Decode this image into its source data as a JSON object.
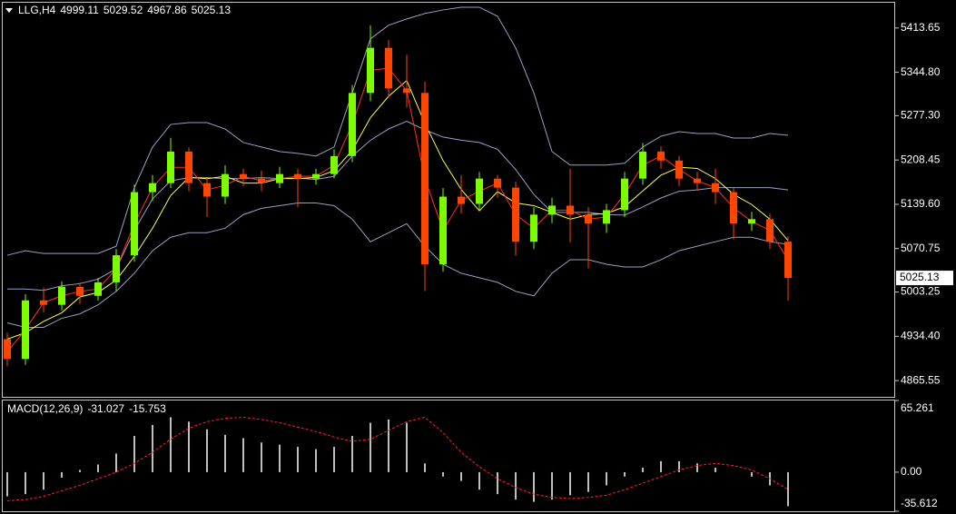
{
  "chart_data": [
    {
      "type": "candlestick",
      "title": "LLG,H4",
      "readout": [
        4999.11,
        5029.52,
        4967.86,
        5025.13
      ],
      "open": [
        4930,
        4899.2,
        4990.3,
        4983.3,
        5011.3,
        4997.3,
        5018.3,
        5060.4,
        5158.5,
        5172.5,
        5221.6,
        5172.5,
        5151.5,
        5186.6,
        5179.5,
        5172.5,
        5186.6,
        5179.5,
        5186.6,
        5214.6,
        5312.7,
        5382.8,
        5319.7,
        5312.7,
        5046.4,
        5151.5,
        5140.2,
        5179.5,
        5165.5,
        5081.4,
        5123.5,
        5137.5,
        5123.5,
        5109.5,
        5130.5,
        5179.5,
        5221.6,
        5207.6,
        5179.5,
        5172.5,
        5158.5,
        5109.5,
        5116.5,
        5081.4
      ],
      "high": [
        4940,
        5000,
        5010,
        5020,
        5018,
        5025,
        5070,
        5170,
        5185,
        5243,
        5228,
        5180,
        5200,
        5195,
        5192,
        5198,
        5195,
        5195,
        5225,
        5325,
        5418,
        5395,
        5372,
        5330,
        5165,
        5185,
        5190,
        5185,
        5175,
        5135,
        5150,
        5195,
        5135,
        5140,
        5190,
        5235,
        5230,
        5215,
        5190,
        5195,
        5165,
        5128,
        5125,
        5090
      ],
      "low": [
        4888,
        4890,
        4972,
        4975,
        4985,
        4990,
        5005,
        5050,
        5145,
        5165,
        5160,
        5120,
        5140,
        5168,
        5160,
        5165,
        5135,
        5170,
        5180,
        5205,
        5300,
        5305,
        5290,
        5005,
        5035,
        5125,
        5130,
        5150,
        5060,
        5070,
        5110,
        5080,
        5040,
        5095,
        5120,
        5170,
        5195,
        5168,
        5162,
        5140,
        5085,
        5098,
        5070,
        4990
      ],
      "close": [
        4899.2,
        4990.3,
        4983.3,
        5011.3,
        4997.3,
        5018.3,
        5060.4,
        5158.5,
        5172.5,
        5221.6,
        5172.5,
        5151.5,
        5186.6,
        5179.5,
        5172.5,
        5186.6,
        5179.5,
        5186.6,
        5214.6,
        5312.7,
        5382.8,
        5319.7,
        5312.7,
        5046.4,
        5151.5,
        5140.2,
        5179.5,
        5165.5,
        5081.4,
        5123.5,
        5137.5,
        5123.5,
        5109.5,
        5130.5,
        5179.5,
        5221.6,
        5207.6,
        5179.5,
        5172.5,
        5158.5,
        5109.5,
        5116.5,
        5081.4,
        5025.13
      ],
      "up_color": "#7cfc00",
      "down_color": "#ff4500",
      "overlays": [
        {
          "color": "#9aa0c0",
          "values": [
            5060.4,
            5067.4,
            5063.2,
            5063.2,
            5063.2,
            5063.2,
            5074.4,
            5165.5,
            5228.6,
            5263.7,
            5266.5,
            5266.5,
            5256.6,
            5235.6,
            5228.6,
            5221.6,
            5218.8,
            5214.6,
            5228.6,
            5312.7,
            5396.8,
            5417.9,
            5427.7,
            5436.1,
            5441.7,
            5445.9,
            5445.9,
            5431.9,
            5382.8,
            5312.7,
            5221.6,
            5200.6,
            5200.6,
            5200.6,
            5203.4,
            5228.6,
            5245.4,
            5252.4,
            5249.6,
            5249.6,
            5242.6,
            5242.6,
            5249.6,
            5246.8
          ]
        },
        {
          "color": "#9aa0c0",
          "values": [
            5007.9,
            5007.9,
            5005.8,
            5012.8,
            5016.3,
            5023.3,
            5039.4,
            5099.0,
            5148.0,
            5176.1,
            5181.0,
            5181.0,
            5179.5,
            5179.6,
            5181.0,
            5179.6,
            5180.3,
            5178.2,
            5183.1,
            5214.6,
            5239.1,
            5256.7,
            5268.6,
            5255.3,
            5244.1,
            5239.2,
            5235.7,
            5225.1,
            5193.6,
            5155.0,
            5127.0,
            5127.0,
            5127.0,
            5123.5,
            5122.8,
            5135.4,
            5149.4,
            5159.9,
            5162.0,
            5165.5,
            5165.5,
            5165.5,
            5165.5,
            5162.0
          ]
        },
        {
          "color": "#9aa0c0",
          "values": [
            4955.3,
            4948.3,
            4948.3,
            4962.3,
            4969.3,
            4983.3,
            5004.3,
            5032.4,
            5067.4,
            5088.4,
            5095.4,
            5095.4,
            5102.4,
            5123.5,
            5133.3,
            5137.5,
            5141.7,
            5141.7,
            5137.5,
            5116.5,
            5081.4,
            5095.4,
            5109.5,
            5074.4,
            5046.4,
            5032.4,
            5025.4,
            5018.3,
            5004.3,
            4997.3,
            5032.4,
            5053.4,
            5053.4,
            5046.4,
            5042.2,
            5042.2,
            5053.4,
            5067.4,
            5074.4,
            5081.4,
            5088.4,
            5088.4,
            5081.4,
            5077.2
          ]
        },
        {
          "color": "#ffff50",
          "values": [
            4930,
            4940,
            4957.6,
            4971.0,
            4995.6,
            5002.6,
            5021.8,
            5058.6,
            5102.4,
            5153.3,
            5181.3,
            5179.5,
            5183.1,
            5172.5,
            5172.5,
            5179.6,
            5179.6,
            5181.3,
            5191.8,
            5223.4,
            5274.2,
            5307.5,
            5332.0,
            5265.4,
            5207.6,
            5162.7,
            5129.4,
            5159.2,
            5141.7,
            5137.5,
            5127.0,
            5116.5,
            5123.5,
            5125.3,
            5135.8,
            5160.3,
            5184.8,
            5197.1,
            5195.3,
            5179.6,
            5155.0,
            5139.2,
            5116.5,
            5083.2
          ]
        },
        {
          "color": "#ff3020",
          "values": [
            4910,
            4944.8,
            4986.8,
            4997.3,
            5004.3,
            5007.8,
            5039.4,
            5109.5,
            5165.5,
            5197.1,
            5197.1,
            5162.0,
            5169.1,
            5183.1,
            5176.0,
            5179.6,
            5183.1,
            5183.1,
            5200.6,
            5263.7,
            5347.8,
            5351.3,
            5316.2,
            5179.6,
            5099.0,
            5145.9,
            5159.9,
            5172.5,
            5123.5,
            5102.5,
            5130.5,
            5130.5,
            5116.5,
            5120.0,
            5155.0,
            5200.6,
            5214.6,
            5193.6,
            5176.0,
            5165.5,
            5134.0,
            5113.0,
            5099.0,
            5053.3
          ]
        }
      ],
      "ylim": [
        4840.3,
        5452.9
      ],
      "yticks": [
        5413.65,
        {
          "value": 5344.8,
          "label": "5344.80"
        },
        {
          "value": 5277.3,
          "label": "5277.30"
        },
        5208.45,
        {
          "value": 5139.6,
          "label": "5139.60"
        },
        5070.75,
        5003.25,
        {
          "value": 4934.4,
          "label": "4934.40"
        },
        4865.55
      ]
    },
    {
      "type": "macd",
      "title": "MACD(12,26,9)",
      "histogram": {
        "color": "#ffffff",
        "values": [
          -22,
          -20,
          -16,
          -5,
          2,
          7,
          17,
          33,
          43,
          50,
          46,
          39,
          34,
          31,
          27,
          25,
          23,
          21,
          23,
          33,
          45,
          48,
          45,
          8,
          -4,
          -8,
          -16,
          -20,
          -25,
          -27,
          -25,
          -21,
          -18,
          -12,
          -4,
          4,
          10,
          10,
          8,
          4,
          0,
          -4,
          -12,
          -31.027
        ]
      },
      "signal": {
        "color": "#ff2020",
        "values": [
          -26,
          -25,
          -22,
          -17,
          -12,
          -6,
          0,
          8,
          18,
          30,
          40,
          46,
          49,
          50,
          48,
          45,
          41,
          37,
          32,
          28,
          30,
          38,
          46,
          50,
          36,
          18,
          5,
          -6,
          -14,
          -20,
          -23,
          -24,
          -23,
          -21,
          -16,
          -10,
          -4,
          2,
          6,
          8,
          6,
          2,
          -6,
          -15.753
        ]
      },
      "ylim": [
        -35.612,
        65.261
      ],
      "yticks": [
        65.261,
        {
          "value": 0,
          "label": "0.00"
        },
        -35.612
      ]
    }
  ]
}
